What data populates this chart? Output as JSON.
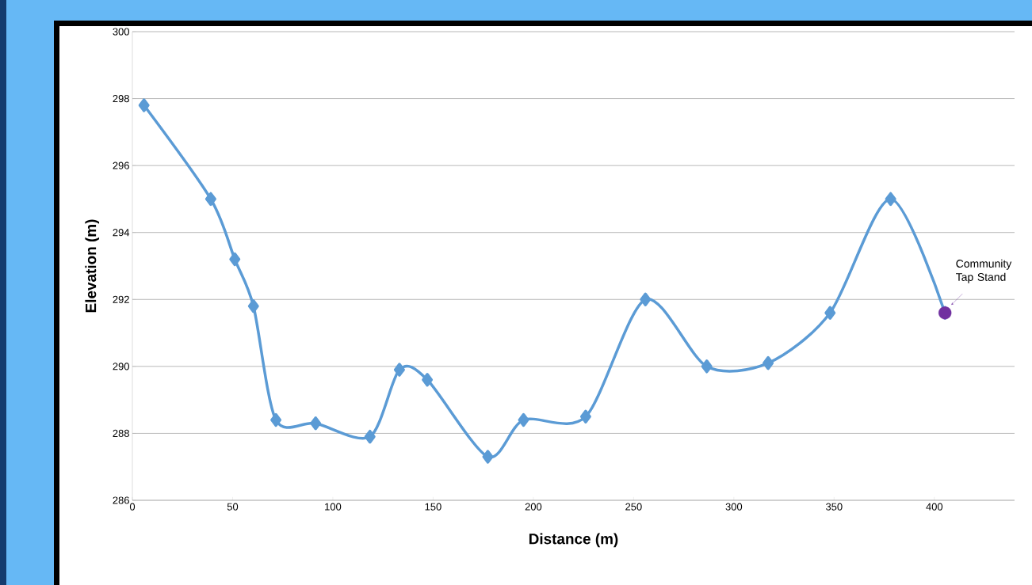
{
  "chart_data": {
    "type": "line",
    "xlabel": "Distance (m)",
    "ylabel": "Elevation (m)",
    "xlim": [
      0,
      440
    ],
    "xticks": [
      0,
      50,
      100,
      150,
      200,
      250,
      300,
      350,
      400
    ],
    "ylim": [
      286,
      300
    ],
    "yticks": [
      286,
      288,
      290,
      292,
      294,
      296,
      298,
      300
    ],
    "grid": "y",
    "line_style": "solid",
    "series": [
      {
        "color": "#5b9bd5",
        "marker": "diamond",
        "x": [
          5.8,
          39.1,
          51.1,
          60.4,
          71.6,
          91.4,
          118.5,
          133.2,
          147.1,
          177.3,
          195.1,
          226.1,
          255.9,
          286.5,
          317.1,
          348.0,
          378.2,
          405.3
        ],
        "values": [
          297.8,
          295.0,
          293.2,
          291.8,
          288.4,
          288.3,
          287.9,
          289.9,
          289.6,
          287.3,
          288.4,
          288.5,
          292.0,
          290.0,
          290.1,
          291.6,
          295.0,
          291.6
        ]
      },
      {
        "type": "scatter",
        "marker": "circle",
        "color": "#7030a0",
        "x": [
          405.3
        ],
        "values": [
          291.6
        ]
      }
    ],
    "annotations": [
      {
        "text": "Community Tap Stand",
        "x": 405.3,
        "y": 291.6
      }
    ]
  }
}
